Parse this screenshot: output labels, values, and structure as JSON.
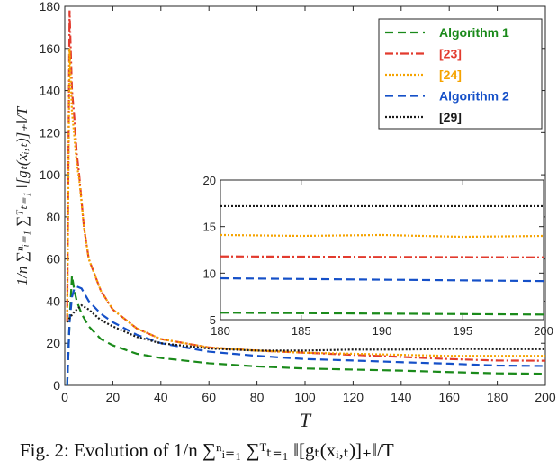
{
  "chart_data": {
    "type": "line",
    "xlabel": "T",
    "ylabel": "1/n ∑ⁿᵢ₌₁ ∑ᵀₜ₌₁ ‖[gₜ(xᵢ,ₜ)]₊‖/T",
    "xlim": [
      0,
      200
    ],
    "ylim": [
      0,
      180
    ],
    "xticks": [
      "0",
      "20",
      "40",
      "60",
      "80",
      "100",
      "120",
      "140",
      "160",
      "180",
      "200"
    ],
    "yticks": [
      "0",
      "20",
      "40",
      "60",
      "80",
      "100",
      "120",
      "140",
      "160",
      "180"
    ],
    "legend": "top-right",
    "series": [
      {
        "name": "Algorithm 1",
        "color": "#1a8a1a",
        "dash": "dashed",
        "x": [
          1,
          2,
          3,
          4,
          5,
          7,
          10,
          15,
          20,
          30,
          40,
          60,
          80,
          100,
          120,
          140,
          160,
          180,
          200
        ],
        "y": [
          0,
          30,
          52,
          45,
          40,
          34,
          28,
          22,
          19,
          15,
          13,
          10.5,
          9,
          8,
          7.5,
          7,
          6.3,
          5.7,
          5.5
        ]
      },
      {
        "name": "[23]",
        "color": "#e23b2e",
        "dash": "dashdot",
        "x": [
          1,
          2,
          3,
          4,
          5,
          6,
          8,
          10,
          15,
          20,
          30,
          40,
          60,
          80,
          100,
          120,
          140,
          160,
          180,
          200
        ],
        "y": [
          30,
          178,
          140,
          127,
          110,
          100,
          75,
          60,
          45,
          36,
          27,
          22,
          18,
          16.5,
          15.5,
          14.5,
          13.5,
          12.5,
          11.8,
          11.7
        ]
      },
      {
        "name": "[24]",
        "color": "#f5a300",
        "dash": "dotted",
        "x": [
          1,
          2,
          3,
          4,
          5,
          6,
          8,
          10,
          15,
          20,
          30,
          40,
          60,
          80,
          100,
          120,
          140,
          160,
          180,
          200
        ],
        "y": [
          30,
          160,
          130,
          118,
          105,
          98,
          75,
          60,
          45,
          36,
          27,
          22,
          18,
          16.5,
          15.5,
          15,
          14.5,
          14,
          14,
          14
        ]
      },
      {
        "name": "Algorithm 2",
        "color": "#1550c8",
        "dash": "dashed",
        "x": [
          1,
          2,
          3,
          4,
          5,
          7,
          10,
          15,
          20,
          30,
          40,
          60,
          80,
          100,
          120,
          140,
          160,
          180,
          200
        ],
        "y": [
          0,
          30,
          42,
          46,
          47,
          46,
          40,
          34,
          30,
          24,
          20,
          16,
          14,
          12.5,
          11.8,
          11,
          10.3,
          9.4,
          9.2
        ]
      },
      {
        "name": "[29]",
        "color": "#1a1a1a",
        "dash": "dotted",
        "x": [
          1,
          2,
          4,
          7,
          10,
          15,
          20,
          30,
          40,
          60,
          80,
          100,
          120,
          140,
          160,
          180,
          200
        ],
        "y": [
          30,
          32,
          35,
          38,
          36,
          31,
          28,
          23,
          20,
          17.5,
          16.5,
          16.5,
          17,
          17,
          17.3,
          17.2,
          17.2
        ]
      }
    ],
    "inset": {
      "xlim": [
        180,
        200
      ],
      "ylim": [
        5,
        20
      ],
      "xticks": [
        "180",
        "185",
        "190",
        "195",
        "200"
      ],
      "yticks": [
        "5",
        "10",
        "15",
        "20"
      ],
      "series": [
        {
          "name": "Algorithm 1",
          "x": [
            180,
            190,
            200
          ],
          "y": [
            5.75,
            5.65,
            5.55
          ]
        },
        {
          "name": "[23]",
          "x": [
            180,
            190,
            200
          ],
          "y": [
            11.8,
            11.75,
            11.7
          ]
        },
        {
          "name": "[24]",
          "x": [
            180,
            185,
            190,
            195,
            200
          ],
          "y": [
            14.1,
            14.0,
            14.1,
            13.9,
            14.0
          ]
        },
        {
          "name": "Algorithm 2",
          "x": [
            180,
            190,
            200
          ],
          "y": [
            9.45,
            9.3,
            9.15
          ]
        },
        {
          "name": "[29]",
          "x": [
            180,
            190,
            200
          ],
          "y": [
            17.2,
            17.2,
            17.2
          ]
        }
      ]
    }
  },
  "caption": "Fig. 2: Evolution of 1/n ∑ⁿᵢ₌₁ ∑ᵀₜ₌₁ ‖[gₜ(xᵢ,ₜ)]₊‖/T"
}
